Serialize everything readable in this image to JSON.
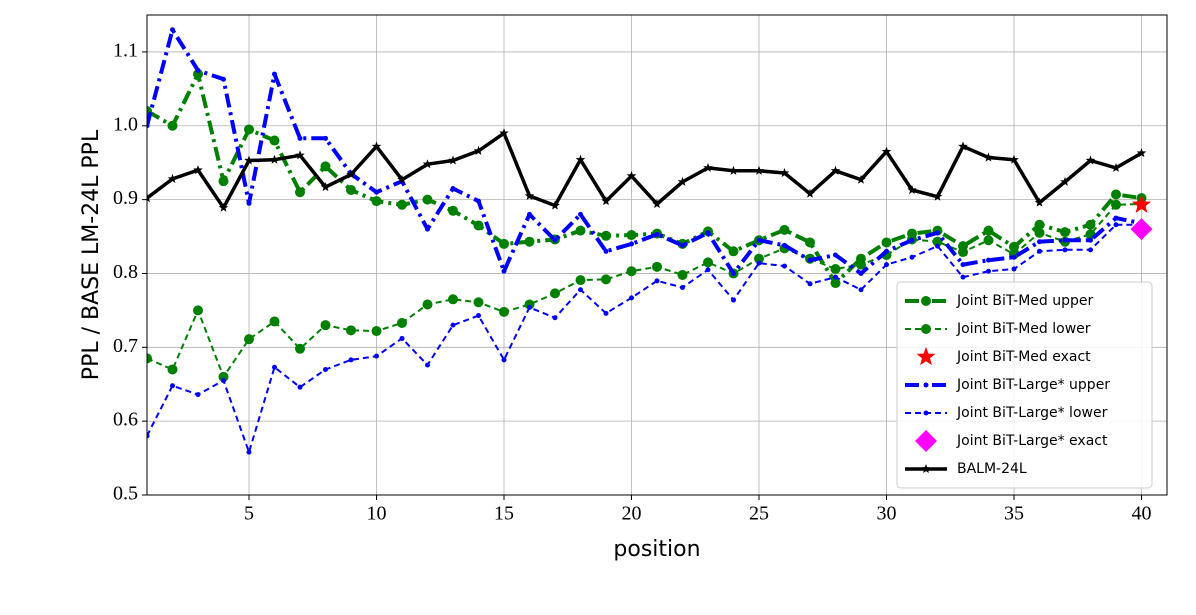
{
  "chart_data": {
    "type": "line",
    "xlabel": "position",
    "ylabel": "PPL / BASE LM-24L PPL",
    "x": [
      1,
      2,
      3,
      4,
      5,
      6,
      7,
      8,
      9,
      10,
      11,
      12,
      13,
      14,
      15,
      16,
      17,
      18,
      19,
      20,
      21,
      22,
      23,
      24,
      25,
      26,
      27,
      28,
      29,
      30,
      31,
      32,
      33,
      34,
      35,
      36,
      37,
      38,
      39,
      40
    ],
    "xlim": [
      1,
      41
    ],
    "ylim": [
      0.5,
      1.15
    ],
    "xticks": [
      5,
      10,
      15,
      20,
      25,
      30,
      35,
      40
    ],
    "yticks": [
      0.5,
      0.6,
      0.7,
      0.8,
      0.9,
      {
        "value": 1.0,
        "label": "1.0"
      },
      1.1
    ],
    "grid": true,
    "legend": "lower right",
    "series": [
      {
        "name": "Joint BiT-Med upper",
        "color": "#008000",
        "linestyle": "dashdot",
        "marker": "circle",
        "values": [
          1.02,
          1.0,
          1.07,
          0.925,
          0.995,
          0.98,
          0.91,
          0.945,
          0.913,
          0.898,
          0.893,
          0.9,
          0.885,
          0.865,
          0.84,
          0.843,
          0.846,
          0.858,
          0.851,
          0.852,
          0.854,
          0.84,
          0.857,
          0.83,
          0.845,
          0.859,
          0.842,
          0.787,
          0.82,
          0.842,
          0.854,
          0.858,
          0.837,
          0.858,
          0.836,
          0.866,
          0.856,
          0.866,
          0.907,
          0.902
        ]
      },
      {
        "name": "Joint BiT-Med lower",
        "color": "#008000",
        "linestyle": "dashed",
        "marker": "circle",
        "values": [
          0.685,
          0.67,
          0.75,
          0.66,
          0.711,
          0.735,
          0.698,
          0.73,
          0.723,
          0.722,
          0.733,
          0.758,
          0.765,
          0.761,
          0.748,
          0.758,
          0.773,
          0.791,
          0.792,
          0.803,
          0.809,
          0.798,
          0.815,
          0.8,
          0.82,
          0.834,
          0.82,
          0.806,
          0.812,
          0.825,
          0.846,
          0.843,
          0.829,
          0.845,
          0.826,
          0.855,
          0.843,
          0.853,
          0.893,
          0.894
        ]
      },
      {
        "name": "Joint BiT-Med exact",
        "color": "#ff0000",
        "linestyle": "none",
        "marker": "star",
        "x": [
          40
        ],
        "values": [
          0.893
        ]
      },
      {
        "name": "Joint BiT-Large* upper",
        "color": "#0000ff",
        "linestyle": "dashdot",
        "marker": "dot",
        "values": [
          1.0,
          1.13,
          1.075,
          1.063,
          0.895,
          1.07,
          0.983,
          0.983,
          0.935,
          0.91,
          0.925,
          0.86,
          0.915,
          0.898,
          0.803,
          0.88,
          0.845,
          0.88,
          0.83,
          0.84,
          0.853,
          0.838,
          0.855,
          0.8,
          0.845,
          0.838,
          0.818,
          0.825,
          0.8,
          0.83,
          0.845,
          0.855,
          0.812,
          0.818,
          0.822,
          0.843,
          0.845,
          0.845,
          0.875,
          0.868
        ]
      },
      {
        "name": "Joint BiT-Large* lower",
        "color": "#0000ff",
        "linestyle": "dashed",
        "marker": "dot",
        "values": [
          0.58,
          0.648,
          0.636,
          0.655,
          0.558,
          0.673,
          0.646,
          0.67,
          0.683,
          0.688,
          0.712,
          0.676,
          0.73,
          0.743,
          0.683,
          0.754,
          0.74,
          0.778,
          0.746,
          0.767,
          0.79,
          0.781,
          0.805,
          0.764,
          0.814,
          0.81,
          0.786,
          0.795,
          0.778,
          0.812,
          0.822,
          0.837,
          0.795,
          0.803,
          0.806,
          0.83,
          0.832,
          0.832,
          0.866,
          0.866
        ]
      },
      {
        "name": "Joint BiT-Large* exact",
        "color": "#ff00ff",
        "linestyle": "none",
        "marker": "diamond",
        "x": [
          40
        ],
        "values": [
          0.86
        ]
      },
      {
        "name": "BALM-24L",
        "color": "#000000",
        "linestyle": "solid",
        "marker": "small-star",
        "values": [
          0.902,
          0.928,
          0.94,
          0.889,
          0.953,
          0.954,
          0.96,
          0.917,
          0.934,
          0.972,
          0.927,
          0.948,
          0.953,
          0.966,
          0.99,
          0.905,
          0.892,
          0.954,
          0.898,
          0.932,
          0.894,
          0.924,
          0.943,
          0.939,
          0.939,
          0.936,
          0.908,
          0.939,
          0.927,
          0.965,
          0.913,
          0.904,
          0.972,
          0.957,
          0.954,
          0.896,
          0.924,
          0.953,
          0.943,
          0.963
        ]
      }
    ]
  }
}
